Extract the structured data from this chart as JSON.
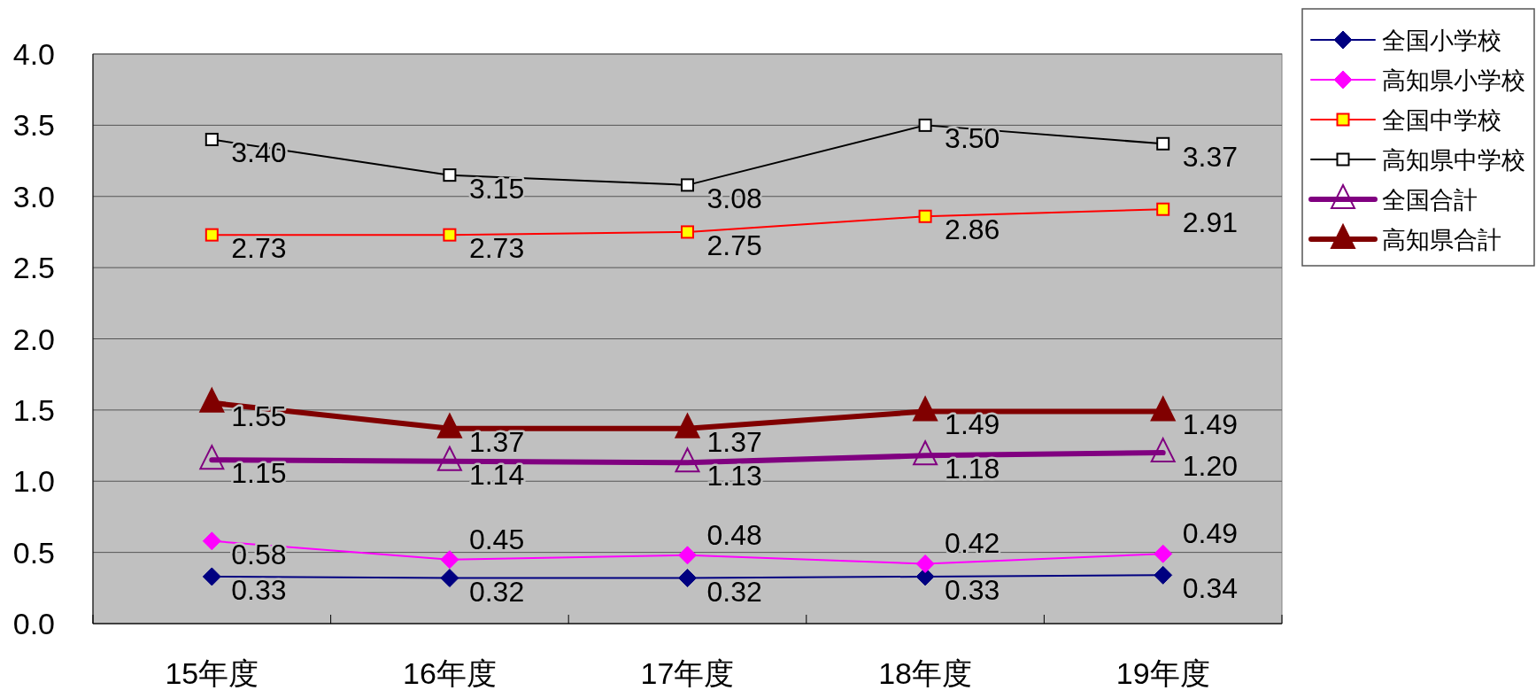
{
  "chart_data": {
    "type": "line",
    "categories": [
      "15年度",
      "16年度",
      "17年度",
      "18年度",
      "19年度"
    ],
    "series": [
      {
        "name": "全国小学校",
        "color": "#000080",
        "marker": "diamond",
        "values": [
          0.33,
          0.32,
          0.32,
          0.33,
          0.34
        ],
        "value_labels": [
          "0.33",
          "0.32",
          "0.32",
          "0.33",
          "0.34"
        ]
      },
      {
        "name": "高知県小学校",
        "color": "#ff00ff",
        "marker": "diamond",
        "values": [
          0.58,
          0.45,
          0.48,
          0.42,
          0.49
        ],
        "value_labels": [
          "0.58",
          "0.45",
          "0.48",
          "0.42",
          "0.49"
        ]
      },
      {
        "name": "全国中学校",
        "color": "#ff0000",
        "marker": "square",
        "values": [
          2.73,
          2.73,
          2.75,
          2.86,
          2.91
        ],
        "value_labels": [
          "2.73",
          "2.73",
          "2.75",
          "2.86",
          "2.91"
        ]
      },
      {
        "name": "高知県中学校",
        "color": "#000000",
        "marker": "square",
        "values": [
          3.4,
          3.15,
          3.08,
          3.5,
          3.37
        ],
        "value_labels": [
          "3.40",
          "3.15",
          "3.08",
          "3.50",
          "3.37"
        ]
      },
      {
        "name": "全国合計",
        "color": "#800080",
        "marker": "triangle",
        "values": [
          1.15,
          1.14,
          1.13,
          1.18,
          1.2
        ],
        "value_labels": [
          "1.15",
          "1.14",
          "1.13",
          "1.18",
          "1.20"
        ]
      },
      {
        "name": "高知県合計",
        "color": "#800000",
        "marker": "triangle",
        "values": [
          1.55,
          1.37,
          1.37,
          1.49,
          1.49
        ],
        "value_labels": [
          "1.55",
          "1.37",
          "1.37",
          "1.49",
          "1.49"
        ]
      }
    ],
    "ylim": [
      0,
      4
    ],
    "yticks": [
      {
        "value": 0,
        "label": "0.0"
      },
      {
        "value": 0.5,
        "label": "0.5"
      },
      {
        "value": 1,
        "label": "1.0"
      },
      {
        "value": 1.5,
        "label": "1.5"
      },
      {
        "value": 2,
        "label": "2.0"
      },
      {
        "value": 2.5,
        "label": "2.5"
      },
      {
        "value": 3,
        "label": "3.0"
      },
      {
        "value": 3.5,
        "label": "3.5"
      },
      {
        "value": 4,
        "label": "4.0"
      }
    ],
    "grid": "y",
    "legend": "top right"
  }
}
